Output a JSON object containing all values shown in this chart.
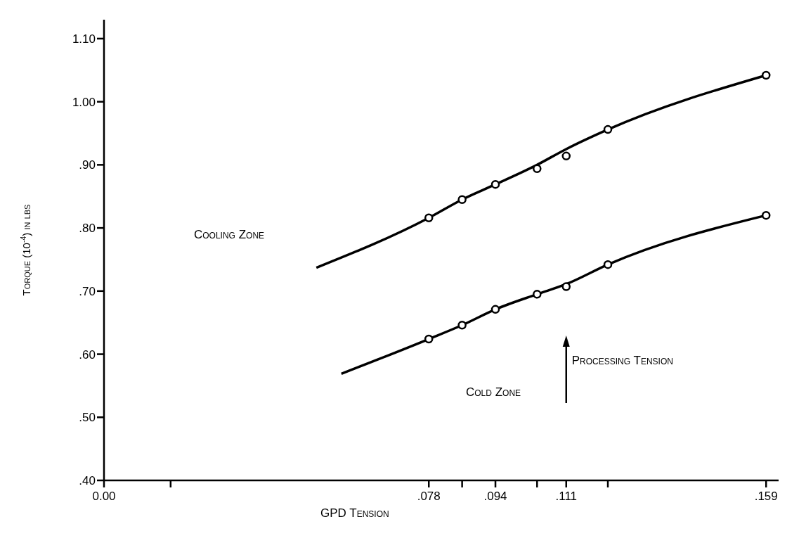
{
  "chart_data": {
    "type": "line",
    "xlabel": "GPD Tension",
    "ylabel": "Torque (10$^{-4}$) in lbs",
    "xlim": [
      0,
      0.162
    ],
    "ylim": [
      0.4,
      1.13
    ],
    "xticks": [
      {
        "value": 0,
        "label": "0.00"
      },
      {
        "value": 0.016,
        "label": null
      },
      {
        "value": 0.078,
        "label": ".078"
      },
      {
        "value": 0.086,
        "label": null
      },
      {
        "value": 0.094,
        "label": ".094"
      },
      {
        "value": 0.104,
        "label": null
      },
      {
        "value": 0.111,
        "label": ".111"
      },
      {
        "value": 0.121,
        "label": null
      },
      {
        "value": 0.159,
        "label": ".159"
      }
    ],
    "yticks": [
      {
        "value": 0.4,
        "label": ".40"
      },
      {
        "value": 0.5,
        "label": ".50"
      },
      {
        "value": 0.6,
        "label": ".60"
      },
      {
        "value": 0.7,
        "label": ".70"
      },
      {
        "value": 0.8,
        "label": ".80"
      },
      {
        "value": 0.9,
        "label": ".90"
      },
      {
        "value": 1.0,
        "label": "1.00"
      },
      {
        "value": 1.1,
        "label": "1.10"
      }
    ],
    "grid": false,
    "legend": false,
    "series": [
      {
        "type": "line",
        "marker": "none",
        "color": "#000000",
        "x": [
          0.051,
          0.078,
          0.086,
          0.094,
          0.104,
          0.111,
          0.121,
          0.159
        ],
        "values": [
          0.737,
          0.816,
          0.845,
          0.869,
          0.9,
          0.925,
          0.956,
          1.042
        ]
      },
      {
        "type": "scatter",
        "marker": "circle",
        "color": "#000000",
        "x": [
          0.078,
          0.086,
          0.094,
          0.104,
          0.111,
          0.121,
          0.159
        ],
        "values": [
          0.816,
          0.845,
          0.869,
          0.894,
          0.914,
          0.956,
          1.042
        ]
      },
      {
        "type": "line",
        "marker": "none",
        "color": "#000000",
        "x": [
          0.057,
          0.078,
          0.086,
          0.094,
          0.104,
          0.111,
          0.121,
          0.159
        ],
        "values": [
          0.569,
          0.624,
          0.646,
          0.671,
          0.695,
          0.711,
          0.742,
          0.82
        ]
      },
      {
        "type": "scatter",
        "marker": "circle",
        "color": "#000000",
        "x": [
          0.078,
          0.086,
          0.094,
          0.104,
          0.111,
          0.121,
          0.159
        ],
        "values": [
          0.624,
          0.646,
          0.671,
          0.695,
          0.707,
          0.742,
          0.82
        ]
      }
    ],
    "annotations": [
      "Cooling Zone",
      "Cold Zone"
    ],
    "ref_lines": [
      {
        "axis": "x",
        "value": 0.111,
        "label": "Processing Tension"
      }
    ]
  }
}
